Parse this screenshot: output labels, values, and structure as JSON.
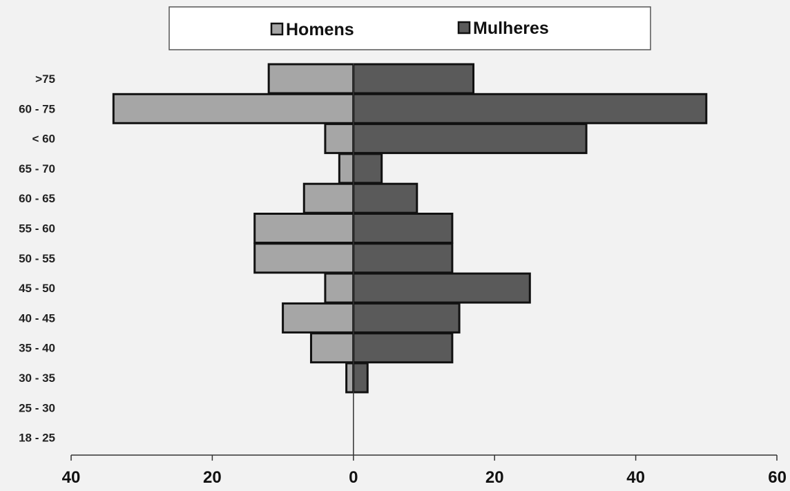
{
  "chart_data": {
    "type": "bar",
    "orientation": "horizontal",
    "categories": [
      ">75",
      "60 - 75",
      "< 60",
      "65 - 70",
      "60 - 65",
      "55 - 60",
      "50 - 55",
      "45 - 50",
      "40 - 45",
      "35 - 40",
      "30 - 35",
      "25 - 30",
      "18 - 25"
    ],
    "series": [
      {
        "name": "Homens",
        "values": [
          12,
          34,
          4,
          2,
          7,
          14,
          14,
          4,
          10,
          6,
          1,
          0,
          0
        ]
      },
      {
        "name": "Mulheres",
        "values": [
          17,
          50,
          33,
          4,
          9,
          14,
          14,
          25,
          15,
          14,
          2,
          0,
          0
        ]
      }
    ],
    "series_colors": [
      "#a6a6a6",
      "#5a5a5a"
    ],
    "group2_colors": [
      "#a6a6a6",
      "#5a5a5a"
    ],
    "upper_group_indices": [
      0,
      1,
      2
    ],
    "xlim": [
      -40,
      60
    ],
    "xticks": [
      -40,
      -20,
      0,
      20,
      40,
      60
    ],
    "xtick_labels": [
      "40",
      "20",
      "0",
      "20",
      "40",
      "60"
    ],
    "legend": {
      "position": "top",
      "entries": [
        "Homens",
        "Mulheres"
      ]
    },
    "grid": false,
    "title": "",
    "xlabel": "",
    "ylabel": ""
  }
}
